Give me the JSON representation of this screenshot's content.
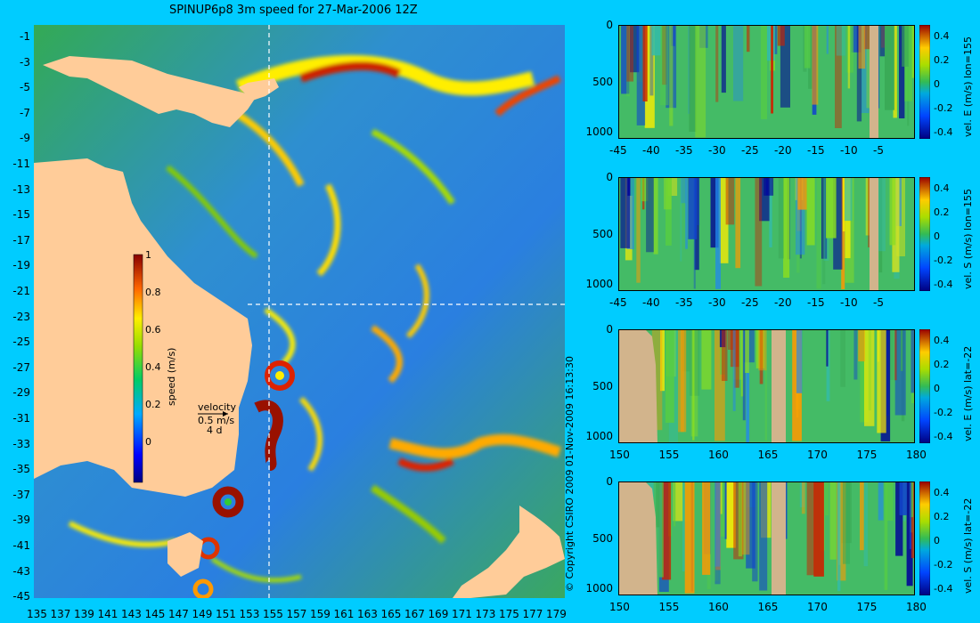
{
  "title": "SPINUP6p8 3m speed for 27-Mar-2006 12Z",
  "copyright": "© Copyright CSIRO 2009   01-Nov-2009 16:13:30",
  "colors": {
    "background": "#00ccff",
    "land": "#ffcc99",
    "panel_land": "#d2b48c"
  },
  "map": {
    "xticks": [
      "135",
      "137",
      "139",
      "141",
      "143",
      "145",
      "147",
      "149",
      "151",
      "153",
      "155",
      "157",
      "159",
      "161",
      "163",
      "165",
      "167",
      "169",
      "171",
      "173",
      "175",
      "177",
      "179"
    ],
    "yticks": [
      "-1",
      "-3",
      "-5",
      "-7",
      "-9",
      "-11",
      "-13",
      "-15",
      "-17",
      "-19",
      "-21",
      "-23",
      "-25",
      "-27",
      "-29",
      "-31",
      "-33",
      "-35",
      "-37",
      "-39",
      "-41",
      "-43",
      "-45"
    ],
    "crosshair": {
      "lon": 155,
      "lat": -22
    },
    "colorbar": {
      "label": "speed (m/s)",
      "ticks": [
        "1",
        "0.8",
        "0.6",
        "0.4",
        "0.2",
        "0"
      ],
      "range": [
        -0.2,
        1
      ]
    },
    "velocity_key": {
      "line1": "velocity",
      "line2": "0.5 m/s",
      "line3": "4 d"
    }
  },
  "panels": [
    {
      "label": "vel. E (m/s) lon=155",
      "xticks": [
        "-45",
        "-40",
        "-35",
        "-30",
        "-25",
        "-20",
        "-15",
        "-10",
        "-5"
      ],
      "yticks": [
        "0",
        "500",
        "1000"
      ],
      "cbticks": [
        "0.4",
        "0.2",
        "0",
        "-0.2",
        "-0.4"
      ]
    },
    {
      "label": "vel. S (m/s) lon=155",
      "xticks": [
        "-45",
        "-40",
        "-35",
        "-30",
        "-25",
        "-20",
        "-15",
        "-10",
        "-5"
      ],
      "yticks": [
        "0",
        "500",
        "1000"
      ],
      "cbticks": [
        "0.4",
        "0.2",
        "0",
        "-0.2",
        "-0.4"
      ]
    },
    {
      "label": "vel. E (m/s) lat=-22",
      "xticks": [
        "150",
        "155",
        "160",
        "165",
        "170",
        "175",
        "180"
      ],
      "yticks": [
        "0",
        "500",
        "1000"
      ],
      "cbticks": [
        "0.4",
        "0.2",
        "0",
        "-0.2",
        "-0.4"
      ]
    },
    {
      "label": "vel. S (m/s) lat=-22",
      "xticks": [
        "150",
        "155",
        "160",
        "165",
        "170",
        "175",
        "180"
      ],
      "yticks": [
        "0",
        "500",
        "1000"
      ],
      "cbticks": [
        "0.4",
        "0.2",
        "0",
        "-0.2",
        "-0.4"
      ]
    }
  ],
  "chart_data": [
    {
      "type": "heatmap",
      "title": "SPINUP6p8 3m speed for 27-Mar-2006 12Z",
      "x_range": [
        135,
        180
      ],
      "y_range": [
        -45,
        0
      ],
      "colorbar_label": "speed (m/s)",
      "colorbar_range": [
        -0.2,
        1
      ]
    },
    {
      "type": "heatmap",
      "ylabel": "vel. E (m/s) lon=155",
      "x_range": [
        -45,
        0
      ],
      "y_range": [
        1050,
        0
      ],
      "colorbar_range": [
        -0.4,
        0.4
      ]
    },
    {
      "type": "heatmap",
      "ylabel": "vel. S (m/s) lon=155",
      "x_range": [
        -45,
        0
      ],
      "y_range": [
        1050,
        0
      ],
      "colorbar_range": [
        -0.4,
        0.4
      ]
    },
    {
      "type": "heatmap",
      "ylabel": "vel. E (m/s) lat=-22",
      "x_range": [
        150,
        180
      ],
      "y_range": [
        1050,
        0
      ],
      "colorbar_range": [
        -0.4,
        0.4
      ]
    },
    {
      "type": "heatmap",
      "ylabel": "vel. S (m/s) lat=-22",
      "x_range": [
        150,
        180
      ],
      "y_range": [
        1050,
        0
      ],
      "colorbar_range": [
        -0.4,
        0.4
      ]
    }
  ]
}
